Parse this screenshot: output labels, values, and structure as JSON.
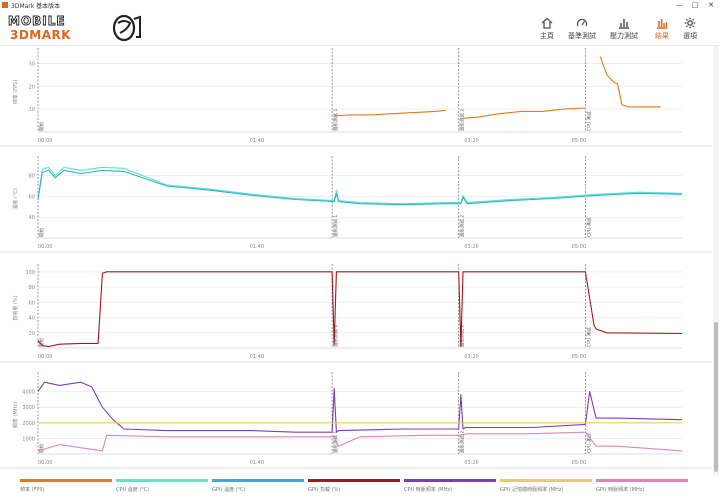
{
  "window": {
    "title": "3DMark 基本版本",
    "controls": [
      "—",
      "□",
      "✕"
    ]
  },
  "logo": {
    "line1": "MOBILE",
    "line2": "3DMARK"
  },
  "nav": [
    {
      "label": "主頁",
      "icon": "home-icon"
    },
    {
      "label": "基準測試",
      "icon": "gauge-icon"
    },
    {
      "label": "壓力測試",
      "icon": "bar-chart-icon"
    },
    {
      "label": "結果",
      "icon": "results-icon",
      "active": true
    },
    {
      "label": "選項",
      "icon": "gear-icon"
    }
  ],
  "colors": {
    "accent": "#e0661c",
    "fps": "#e07a1a",
    "cpu_temp": "#57e6c8",
    "gpu_temp": "#2fb3cf",
    "gpu_load": "#a3191b",
    "cpu_freq": "#7d3fb0",
    "gpu_mem_freq": "#e7cd6a",
    "gpu_freq": "#d889b7"
  },
  "markers": {
    "start": "開始",
    "test1": "圖形測試 1",
    "test2": "圖形測試 2",
    "cpu": "CPU 測試"
  },
  "chart_data": [
    {
      "type": "line",
      "ylabel": "幀率 (FPS)",
      "ylim": [
        0,
        35
      ],
      "yticks": [
        10,
        20,
        30
      ],
      "xticks": [
        "00:00",
        "01:40",
        "03:20",
        "05:00"
      ],
      "grid": true,
      "series": [
        {
          "name": "幀率 (FPS)",
          "color_key": "fps",
          "segments": [
            {
              "x": [
                138,
                145,
                155,
                165,
                175,
                185,
                190
              ],
              "y": [
                7,
                7.5,
                7.5,
                8,
                8.5,
                9,
                9.5
              ]
            },
            {
              "x": [
                198,
                205,
                215,
                225,
                235,
                245,
                255
              ],
              "y": [
                6,
                6.5,
                8,
                9,
                9,
                10,
                10.5
              ]
            },
            {
              "x": [
                262,
                263,
                265,
                268,
                270,
                272,
                275,
                280,
                290
              ],
              "y": [
                33,
                30,
                25,
                22,
                21,
                12,
                11,
                11,
                11
              ]
            }
          ]
        }
      ]
    },
    {
      "type": "line",
      "ylabel": "溫度 (°C)",
      "ylim": [
        20,
        95
      ],
      "yticks": [
        40,
        60,
        80
      ],
      "xticks": [
        "00:00",
        "01:40",
        "03:20",
        "05:00"
      ],
      "grid": true,
      "series": [
        {
          "name": "CPU 溫度 (°C)",
          "color_key": "cpu_temp",
          "segments": [
            {
              "x": [
                0,
                2,
                5,
                8,
                12,
                20,
                30,
                40,
                60,
                80,
                100,
                120,
                138,
                139,
                140,
                150,
                170,
                190,
                197,
                198,
                200,
                220,
                240,
                260,
                280,
                300
              ],
              "y": [
                58,
                86,
                88,
                80,
                88,
                85,
                88,
                87,
                71,
                67,
                62,
                58,
                56,
                66,
                56,
                54,
                53,
                54,
                54,
                61,
                54,
                57,
                59,
                62,
                64,
                63
              ]
            }
          ]
        },
        {
          "name": "GPU 溫度 (°C)",
          "color_key": "gpu_temp",
          "segments": [
            {
              "x": [
                0,
                2,
                5,
                8,
                12,
                20,
                30,
                40,
                60,
                80,
                100,
                120,
                138,
                139,
                140,
                150,
                170,
                190,
                197,
                198,
                200,
                220,
                240,
                260,
                280,
                300
              ],
              "y": [
                57,
                83,
                85,
                78,
                85,
                82,
                85,
                84,
                70,
                66,
                61,
                57,
                55,
                63,
                55,
                53,
                52,
                53,
                53,
                59,
                53,
                56,
                58,
                61,
                63,
                62
              ]
            }
          ]
        }
      ]
    },
    {
      "type": "line",
      "ylabel": "負荷量 (%)",
      "ylim": [
        0,
        105
      ],
      "yticks": [
        20,
        40,
        60,
        80,
        100
      ],
      "xticks": [
        "00:00",
        "01:40",
        "03:20",
        "05:00"
      ],
      "grid": true,
      "series": [
        {
          "name": "GPU 負載 (%)",
          "color_key": "gpu_load",
          "segments": [
            {
              "x": [
                0,
                2,
                5,
                10,
                20,
                28,
                30,
                32,
                60,
                100,
                137,
                138,
                139,
                140,
                196,
                197,
                198,
                199,
                200,
                255,
                259,
                260,
                262,
                265,
                300
              ],
              "y": [
                10,
                3,
                2,
                5,
                6,
                6,
                98,
                100,
                100,
                100,
                100,
                5,
                100,
                100,
                100,
                2,
                100,
                100,
                100,
                100,
                30,
                25,
                23,
                20,
                19
              ]
            }
          ]
        }
      ]
    },
    {
      "type": "line",
      "ylabel": "頻率 (MHz)",
      "ylim": [
        0,
        5000
      ],
      "yticks": [
        1000,
        2000,
        3000,
        4000
      ],
      "xticks": [
        "00:00",
        "01:40",
        "03:20",
        "05:00"
      ],
      "grid": true,
      "series": [
        {
          "name": "CPU 時脈頻率 (MHz)",
          "color_key": "cpu_freq",
          "segments": [
            {
              "x": [
                0,
                3,
                10,
                20,
                25,
                30,
                35,
                40,
                60,
                80,
                100,
                120,
                137,
                138,
                139,
                140,
                170,
                196,
                197,
                198,
                199,
                230,
                255,
                257,
                260,
                270,
                300
              ],
              "y": [
                4000,
                4600,
                4400,
                4600,
                4300,
                3000,
                2200,
                1600,
                1500,
                1500,
                1500,
                1400,
                1400,
                4200,
                1400,
                1500,
                1600,
                1600,
                3800,
                1600,
                1700,
                1700,
                1900,
                4000,
                2300,
                2300,
                2200
              ]
            }
          ]
        },
        {
          "name": "GPU 記憶體時脈頻率 (MHz)",
          "color_key": "gpu_mem_freq",
          "segments": [
            {
              "x": [
                0,
                300
              ],
              "y": [
                2000,
                2000
              ]
            }
          ]
        },
        {
          "name": "GPU 時脈頻率 (MHz)",
          "color_key": "gpu_freq",
          "segments": [
            {
              "x": [
                0,
                10,
                30,
                32,
                60,
                100,
                138,
                140,
                150,
                180,
                196,
                200,
                230,
                255,
                260,
                270,
                300
              ],
              "y": [
                200,
                600,
                200,
                1200,
                1100,
                1100,
                1100,
                500,
                1100,
                1200,
                1200,
                1300,
                1300,
                1400,
                500,
                500,
                200
              ]
            }
          ]
        }
      ]
    }
  ],
  "legend": [
    {
      "label": "幀率 (FPS)",
      "color_key": "fps"
    },
    {
      "label": "CPU 溫度 (°C)",
      "color_key": "cpu_temp"
    },
    {
      "label": "GPU 溫度 (°C)",
      "color_key": "gpu_temp"
    },
    {
      "label": "GPU 負載 (%)",
      "color_key": "gpu_load"
    },
    {
      "label": "CPU 時脈頻率 (MHz)",
      "color_key": "cpu_freq"
    },
    {
      "label": "GPU 記憶體時脈頻率 (MHz)",
      "color_key": "gpu_mem_freq"
    },
    {
      "label": "GPU 時脈頻率 (MHz)",
      "color_key": "gpu_freq"
    }
  ]
}
